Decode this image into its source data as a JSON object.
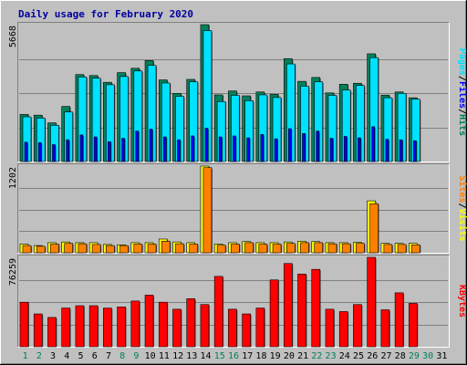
{
  "chart_data": {
    "type": "bar",
    "title": "Daily usage for February 2020",
    "days": [
      "1",
      "2",
      "3",
      "4",
      "5",
      "6",
      "7",
      "8",
      "9",
      "10",
      "11",
      "12",
      "13",
      "14",
      "15",
      "16",
      "17",
      "18",
      "19",
      "20",
      "21",
      "22",
      "23",
      "24",
      "25",
      "26",
      "27",
      "28",
      "29",
      "30",
      "31"
    ],
    "weekend_days": [
      "1",
      "2",
      "8",
      "9",
      "15",
      "16",
      "22",
      "23",
      "29",
      "30"
    ],
    "colors": {
      "background": "#c0c0c0",
      "hits": "#00805c",
      "files": "#00e0ff",
      "pages": "#0000ff",
      "visits": "#ffff00",
      "sites": "#ff8000",
      "kbytes": "#ff0000",
      "title": "#00009f",
      "weekend_tick": "#00805c",
      "weekday_tick": "#000000"
    },
    "panels": [
      {
        "id": "hits",
        "ymax": 5668,
        "ymax_label": "5668",
        "side_label": [
          "Pages",
          "/",
          "Files",
          "/",
          "Hits"
        ],
        "side_colors": [
          "#00e0ff",
          "#000000",
          "#0000ff",
          "#000000",
          "#00805c"
        ],
        "series": [
          {
            "name": "Hits",
            "color": "#00805c",
            "values": [
              1950,
              1920,
              1600,
              2280,
              3600,
              3560,
              3280,
              3680,
              3860,
              4180,
              3380,
              2820,
              3400,
              5668,
              2760,
              2920,
              2720,
              2880,
              2780,
              4260,
              3320,
              3480,
              2840,
              3200,
              3240,
              4460,
              2750,
              2880,
              2640,
              0,
              0
            ]
          },
          {
            "name": "Files",
            "color": "#00e0ff",
            "values": [
              1850,
              1800,
              1500,
              2050,
              3500,
              3450,
              3180,
              3520,
              3750,
              3980,
              3250,
              2700,
              3300,
              5420,
              2480,
              2740,
              2520,
              2760,
              2650,
              4040,
              3120,
              3300,
              2740,
              2960,
              3150,
              4300,
              2640,
              2820,
              2580,
              0,
              0
            ]
          },
          {
            "name": "Pages",
            "color": "#0000ff",
            "values": [
              800,
              780,
              700,
              900,
              1100,
              1020,
              820,
              960,
              1260,
              1340,
              1020,
              900,
              1060,
              1380,
              1020,
              1060,
              980,
              1120,
              940,
              1360,
              1160,
              1260,
              960,
              1040,
              980,
              1440,
              920,
              900,
              860,
              0,
              0
            ]
          }
        ]
      },
      {
        "id": "visits",
        "ymax": 1202,
        "ymax_label": "1202",
        "side_label": [
          "Sites",
          "/",
          "Visits"
        ],
        "side_colors": [
          "#ff8000",
          "#000000",
          "#ffff00"
        ],
        "series": [
          {
            "name": "Visits",
            "color": "#ffff00",
            "values": [
              120,
              100,
              140,
              150,
              140,
              140,
              115,
              110,
              140,
              140,
              190,
              150,
              140,
              1202,
              120,
              140,
              155,
              140,
              140,
              150,
              160,
              155,
              140,
              140,
              145,
              720,
              130,
              130,
              130,
              0,
              0
            ]
          },
          {
            "name": "Sites",
            "color": "#ff8000",
            "values": [
              100,
              90,
              120,
              130,
              125,
              115,
              100,
              100,
              120,
              120,
              160,
              125,
              120,
              1180,
              105,
              120,
              140,
              120,
              120,
              130,
              140,
              140,
              125,
              125,
              130,
              680,
              115,
              115,
              110,
              0,
              0
            ]
          }
        ]
      },
      {
        "id": "kbytes",
        "ymax": 76259,
        "ymax_label": "76259",
        "side_label": [
          "KBytes"
        ],
        "side_colors": [
          "#ff0000"
        ],
        "series": [
          {
            "name": "KBytes",
            "color": "#ff0000",
            "values": [
              38000,
              28000,
              25000,
              33000,
              35000,
              35000,
              33000,
              34000,
              39000,
              44000,
              38000,
              32000,
              41000,
              36000,
              60000,
              32000,
              28000,
              33000,
              57000,
              71000,
              62000,
              66000,
              32000,
              30000,
              36000,
              76259,
              31500,
              46000,
              37000,
              0,
              0
            ]
          }
        ]
      }
    ]
  }
}
